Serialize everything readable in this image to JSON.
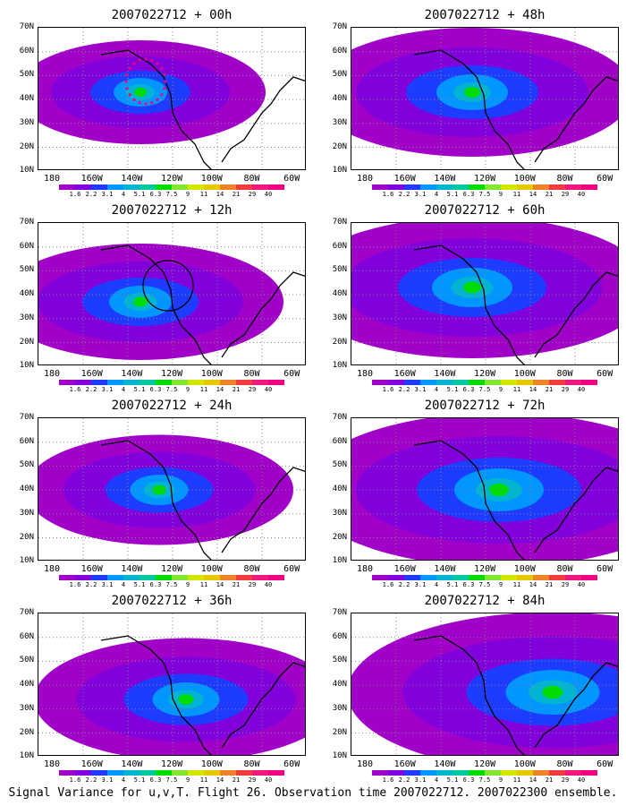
{
  "caption": "Signal Variance for u,v,T. Flight 26. Observation time 2007022712. 2007022300 ensemble.",
  "panels": [
    {
      "title": "2007022712 + 00h",
      "level": 0.4,
      "focus": [
        0.38,
        0.45
      ],
      "circle": false,
      "dots": true
    },
    {
      "title": "2007022712 + 12h",
      "level": 0.5,
      "focus": [
        0.38,
        0.55
      ],
      "circle": true,
      "dots": false
    },
    {
      "title": "2007022712 + 24h",
      "level": 0.45,
      "focus": [
        0.45,
        0.5
      ],
      "circle": false,
      "dots": false
    },
    {
      "title": "2007022712 + 36h",
      "level": 0.55,
      "focus": [
        0.55,
        0.6
      ],
      "circle": false,
      "dots": false
    },
    {
      "title": "2007022712 + 48h",
      "level": 0.6,
      "focus": [
        0.45,
        0.45
      ],
      "circle": false,
      "dots": false
    },
    {
      "title": "2007022712 + 60h",
      "level": 0.7,
      "focus": [
        0.45,
        0.45
      ],
      "circle": false,
      "dots": false
    },
    {
      "title": "2007022712 + 72h",
      "level": 0.8,
      "focus": [
        0.55,
        0.5
      ],
      "circle": false,
      "dots": false
    },
    {
      "title": "2007022712 + 84h",
      "level": 0.85,
      "focus": [
        0.75,
        0.55
      ],
      "circle": false,
      "dots": false
    }
  ],
  "axes": {
    "lat_labels": [
      "70N",
      "60N",
      "50N",
      "40N",
      "30N",
      "20N",
      "10N"
    ],
    "lon_labels": [
      "180",
      "160W",
      "140W",
      "120W",
      "100W",
      "80W",
      "60W"
    ]
  },
  "colorbar": {
    "labels": [
      "1.6",
      "2.2",
      "3.1",
      "4",
      "5.1",
      "6.3",
      "7.5",
      "9",
      "11",
      "14",
      "21",
      "29",
      "40"
    ],
    "colors": [
      "#a000c8",
      "#8200dc",
      "#1e3cff",
      "#0096ff",
      "#00b4d2",
      "#00c8a0",
      "#00dc00",
      "#82e632",
      "#d2e600",
      "#e6c800",
      "#f08228",
      "#f03c3c",
      "#f0187d",
      "#f00082"
    ]
  },
  "fill_colors": {
    "low": "#a000c8",
    "mid": "#8200dc",
    "blue": "#1e3cff",
    "cyan": "#0096ff",
    "teal": "#00b4d2",
    "green": "#00c8a0",
    "lime": "#00dc00"
  }
}
